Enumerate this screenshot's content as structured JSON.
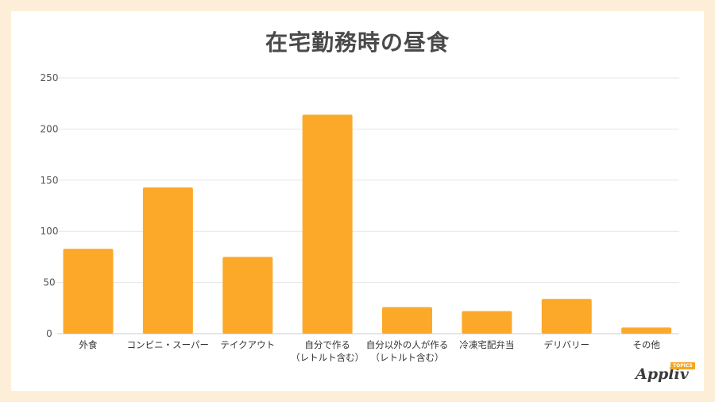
{
  "colors": {
    "bar": "#fca92a",
    "grid": "#e6e6e6",
    "background": "#fdeed8"
  },
  "logo": {
    "text": "Appliv",
    "badge": "TOPICS"
  },
  "chart_data": {
    "type": "bar",
    "title": "在宅勤務時の昼食",
    "xlabel": "",
    "ylabel": "",
    "ylim": [
      0,
      250
    ],
    "yticks": [
      0,
      50,
      100,
      150,
      200,
      250
    ],
    "grid": true,
    "categories": [
      [
        "外食"
      ],
      [
        "コンビニ・スーパー"
      ],
      [
        "テイクアウト"
      ],
      [
        "自分で作る",
        "（レトルト含む）"
      ],
      [
        "自分以外の人が作る",
        "（レトルト含む）"
      ],
      [
        "冷凍宅配弁当"
      ],
      [
        "デリバリー"
      ],
      [
        "その他"
      ]
    ],
    "values": [
      83,
      143,
      75,
      214,
      26,
      22,
      34,
      6
    ]
  }
}
